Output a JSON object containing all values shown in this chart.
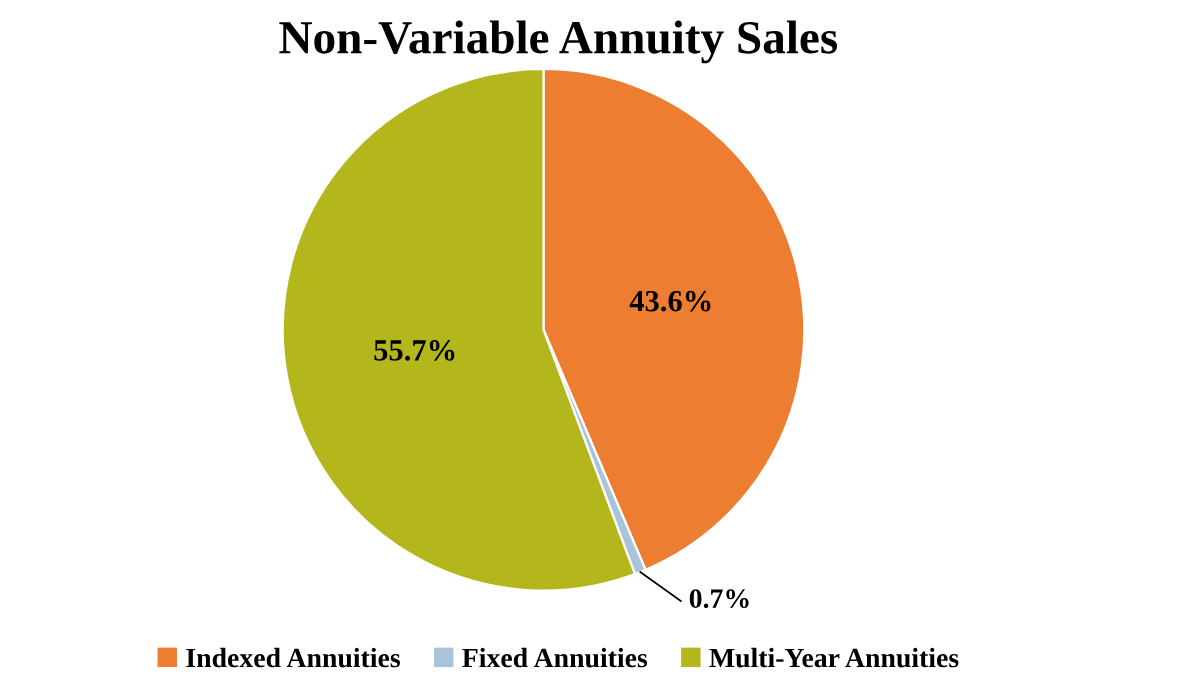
{
  "chart_data": {
    "type": "pie",
    "title": "Non-Variable Annuity Sales",
    "categories": [
      "Indexed Annuities",
      "Fixed Annuities",
      "Multi-Year Annuities"
    ],
    "values": [
      43.6,
      0.7,
      55.7
    ],
    "value_labels": [
      "43.6%",
      "0.7%",
      "55.7%"
    ],
    "colors": [
      "#ed7d31",
      "#a9c4d8",
      "#b3b71c"
    ],
    "legend": "bottom"
  }
}
